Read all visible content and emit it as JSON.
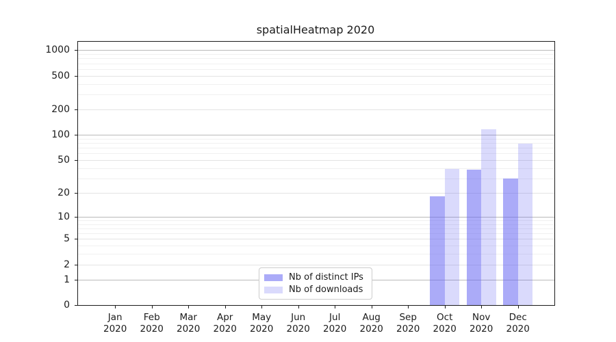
{
  "figure": {
    "background": "#ffffff",
    "frame_color": "#1a1a1a"
  },
  "chart_data": {
    "type": "bar",
    "title": "spatialHeatmap 2020",
    "xlabel": "",
    "ylabel": "",
    "categories": [
      "Jan",
      "Feb",
      "Mar",
      "Apr",
      "May",
      "Jun",
      "Jul",
      "Aug",
      "Sep",
      "Oct",
      "Nov",
      "Dec"
    ],
    "x_tick_year_line": "2020",
    "series": [
      {
        "name": "Nb of distinct IPs",
        "fill": "rgba(102,102,242,0.55)",
        "values": [
          0,
          0,
          0,
          0,
          0,
          0,
          0,
          0,
          0,
          18,
          38,
          30
        ]
      },
      {
        "name": "Nb of downloads",
        "fill": "rgba(102,102,242,0.24)",
        "values": [
          0,
          0,
          0,
          0,
          0,
          0,
          0,
          0,
          0,
          39,
          116,
          79
        ]
      }
    ],
    "y_scale": "log10(value+1)",
    "y_ticks": [
      0,
      1,
      2,
      5,
      10,
      20,
      50,
      100,
      200,
      500,
      1000
    ],
    "ylim": [
      0,
      1250
    ],
    "grid": "horizontal",
    "grid_major_values": [
      1,
      10,
      100,
      1000
    ],
    "grid_mid_values": [
      2,
      5,
      20,
      50,
      200,
      500
    ],
    "grid_colors": {
      "major": "#b9b9b9",
      "mid": "#e3e3e3",
      "minor": "#f0f0f0"
    },
    "legend_position": "bottom-center"
  }
}
